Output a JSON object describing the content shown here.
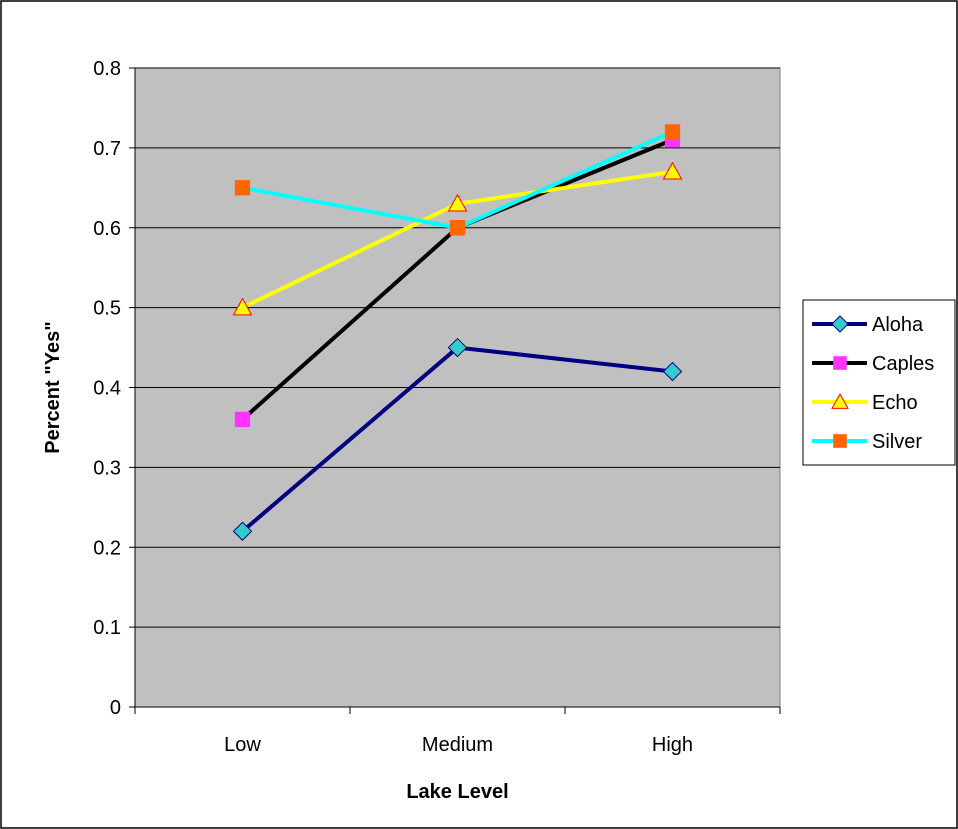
{
  "chart_data": {
    "type": "line",
    "title": "",
    "xlabel": "Lake Level",
    "ylabel": "Percent \"Yes\"",
    "categories": [
      "Low",
      "Medium",
      "High"
    ],
    "ylim": [
      0,
      0.8
    ],
    "yticks": [
      0,
      0.1,
      0.2,
      0.3,
      0.4,
      0.5,
      0.6,
      0.7,
      0.8
    ],
    "ytick_labels": [
      "0",
      "0.1",
      "0.2",
      "0.3",
      "0.4",
      "0.5",
      "0.6",
      "0.7",
      "0.8"
    ],
    "grid": "horizontal",
    "plot_background": "#c0c0c0",
    "legend_position": "right",
    "series": [
      {
        "name": "Aloha",
        "values": [
          0.22,
          0.45,
          0.42
        ],
        "line_color": "#000080",
        "marker": "diamond",
        "marker_fill": "#33cccc"
      },
      {
        "name": "Caples",
        "values": [
          0.36,
          0.6,
          0.71
        ],
        "line_color": "#000000",
        "marker": "square",
        "marker_fill": "#ff33ff"
      },
      {
        "name": "Echo",
        "values": [
          0.5,
          0.63,
          0.67
        ],
        "line_color": "#ffff00",
        "marker": "triangle",
        "marker_fill": "#ffff00"
      },
      {
        "name": "Silver",
        "values": [
          0.65,
          0.6,
          0.72
        ],
        "line_color": "#00ffff",
        "marker": "square",
        "marker_fill": "#ff6600"
      }
    ]
  }
}
